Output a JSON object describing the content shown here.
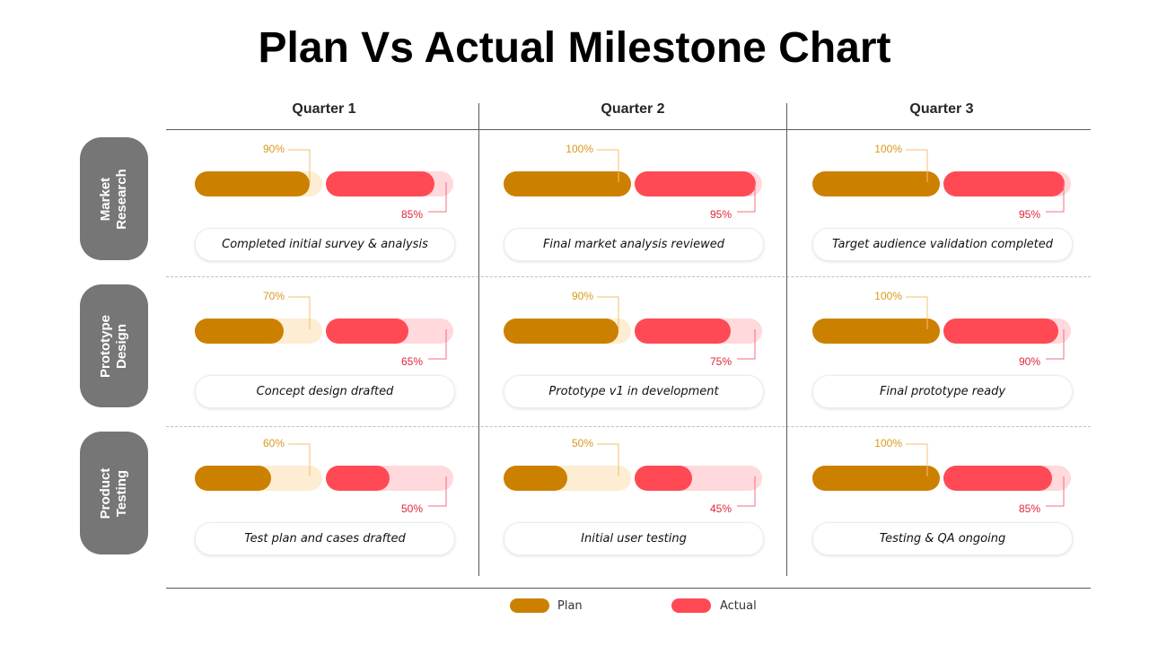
{
  "title": "Plan Vs Actual Milestone Chart",
  "colors": {
    "plan": "#cc8000",
    "plan_track": "#fdedd2",
    "actual": "#ff4a55",
    "actual_track": "#ffd9dc",
    "row_label_bg": "#767676"
  },
  "chart_data": {
    "type": "bar",
    "columns": [
      "Quarter 1",
      "Quarter 2",
      "Quarter 3"
    ],
    "rows": [
      "Market Research",
      "Prototype Design",
      "Product Testing"
    ],
    "legend": [
      "Plan",
      "Actual"
    ],
    "cells": [
      [
        {
          "plan": 90,
          "actual": 85,
          "plan_label": "90%",
          "actual_label": "85%",
          "desc": "Completed initial survey & analysis"
        },
        {
          "plan": 100,
          "actual": 95,
          "plan_label": "100%",
          "actual_label": "95%",
          "desc": "Final market analysis reviewed"
        },
        {
          "plan": 100,
          "actual": 95,
          "plan_label": "100%",
          "actual_label": "95%",
          "desc": "Target audience validation completed"
        }
      ],
      [
        {
          "plan": 70,
          "actual": 65,
          "plan_label": "70%",
          "actual_label": "65%",
          "desc": "Concept design drafted"
        },
        {
          "plan": 90,
          "actual": 75,
          "plan_label": "90%",
          "actual_label": "75%",
          "desc": "Prototype v1 in development"
        },
        {
          "plan": 100,
          "actual": 90,
          "plan_label": "100%",
          "actual_label": "90%",
          "desc": "Final prototype ready"
        }
      ],
      [
        {
          "plan": 60,
          "actual": 50,
          "plan_label": "60%",
          "actual_label": "50%",
          "desc": "Test plan and cases drafted"
        },
        {
          "plan": 50,
          "actual": 45,
          "plan_label": "50%",
          "actual_label": "45%",
          "desc": "Initial user testing"
        },
        {
          "plan": 100,
          "actual": 85,
          "plan_label": "100%",
          "actual_label": "85%",
          "desc": "Testing & QA ongoing"
        }
      ]
    ]
  },
  "row_labels": [
    "Market\nResearch",
    "Prototype\nDesign",
    "Product\nTesting"
  ]
}
